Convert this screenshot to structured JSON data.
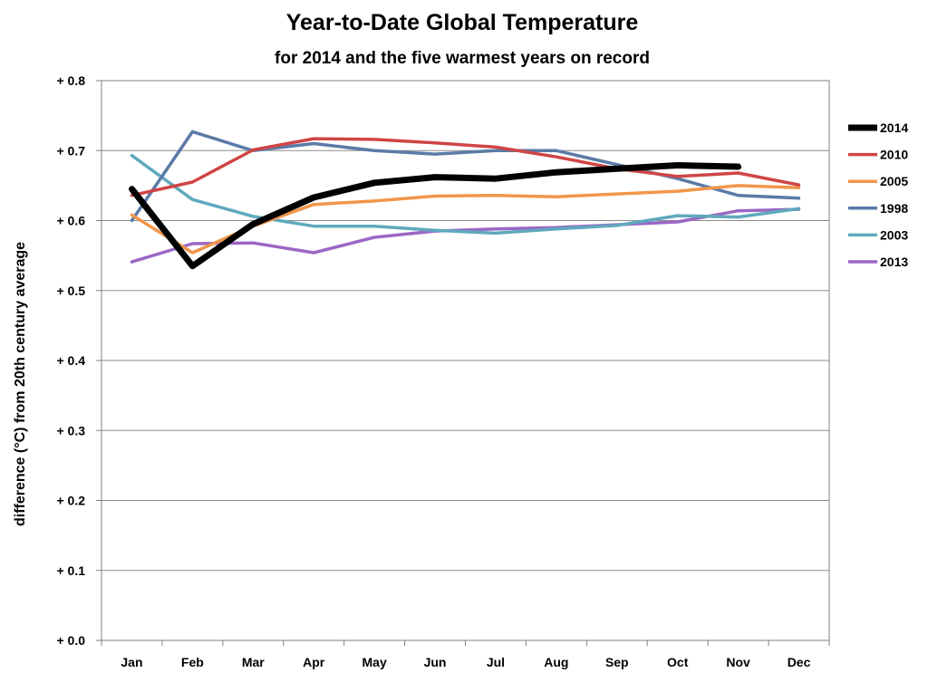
{
  "chart_data": {
    "type": "line",
    "title": "Year-to-Date Global Temperature",
    "subtitle": "for 2014 and the five warmest years on record",
    "xlabel": "",
    "ylabel": "difference (°C)  from 20th century average",
    "categories": [
      "Jan",
      "Feb",
      "Mar",
      "Apr",
      "May",
      "Jun",
      "Jul",
      "Aug",
      "Sep",
      "Oct",
      "Nov",
      "Dec"
    ],
    "ylim": [
      0.0,
      0.8
    ],
    "yticks": [
      {
        "value": 0.0,
        "label": "+ 0.0"
      },
      {
        "value": 0.1,
        "label": "+ 0.1"
      },
      {
        "value": 0.2,
        "label": "+ 0.2"
      },
      {
        "value": 0.3,
        "label": "+ 0.3"
      },
      {
        "value": 0.4,
        "label": "+ 0.4"
      },
      {
        "value": 0.5,
        "label": "+ 0.5"
      },
      {
        "value": 0.6,
        "label": "+ 0.6"
      },
      {
        "value": 0.7,
        "label": "+ 0.7"
      },
      {
        "value": 0.8,
        "label": "+ 0.8"
      }
    ],
    "grid": "horizontal",
    "legend_position": "right",
    "series": [
      {
        "name": "2014",
        "color": "#000000",
        "emphasis": true,
        "values": [
          0.645,
          0.535,
          0.595,
          0.633,
          0.654,
          0.662,
          0.66,
          0.669,
          0.674,
          0.679,
          0.677,
          null
        ]
      },
      {
        "name": "2010",
        "color": "#d04545",
        "values": [
          0.636,
          0.655,
          0.701,
          0.717,
          0.716,
          0.711,
          0.705,
          0.691,
          0.674,
          0.663,
          0.668,
          0.651
        ]
      },
      {
        "name": "2005",
        "color": "#f0964a",
        "values": [
          0.608,
          0.554,
          0.592,
          0.623,
          0.628,
          0.635,
          0.636,
          0.634,
          0.638,
          0.642,
          0.65,
          0.647
        ]
      },
      {
        "name": "1998",
        "color": "#5b7aa6",
        "values": [
          0.6,
          0.727,
          0.7,
          0.71,
          0.7,
          0.695,
          0.7,
          0.7,
          0.68,
          0.66,
          0.636,
          0.632
        ]
      },
      {
        "name": "2003",
        "color": "#5fa9bd",
        "values": [
          0.693,
          0.63,
          0.606,
          0.592,
          0.592,
          0.586,
          0.582,
          0.588,
          0.593,
          0.607,
          0.605,
          0.617
        ]
      },
      {
        "name": "2013",
        "color": "#9b67c4",
        "values": [
          0.541,
          0.567,
          0.568,
          0.554,
          0.576,
          0.585,
          0.588,
          0.59,
          0.594,
          0.598,
          0.614,
          0.616
        ]
      }
    ]
  }
}
